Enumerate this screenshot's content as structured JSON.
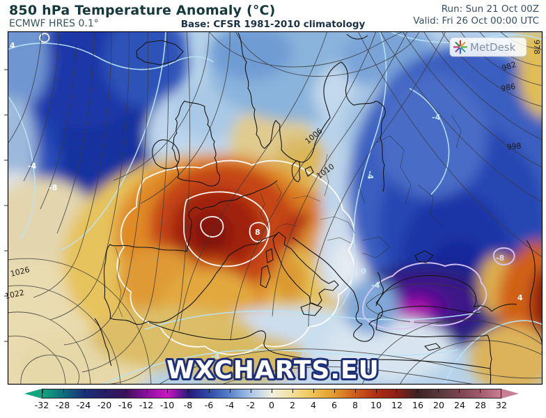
{
  "header": {
    "title": "850 hPa Temperature Anomaly (°C)",
    "model": "ECMWF HRES 0.1°",
    "base": "Base: CFSR 1981-2010 climatology",
    "run": "Run: Sun 21 Oct 00Z",
    "valid": "Valid: Fri 26 Oct 00:00 UTC"
  },
  "logo": {
    "text": "MetDesk"
  },
  "watermark": "WXCHARTS.EU",
  "map": {
    "pressure_labels": [
      "978",
      "982",
      "986",
      "998",
      "1006",
      "1010",
      "1022",
      "1026"
    ],
    "anomaly_labels": [
      "4",
      "-4",
      "-8",
      "8",
      "-4",
      "-4",
      "0",
      "-4",
      "-4",
      "-8",
      "-8",
      "4"
    ]
  },
  "colorbar": {
    "ticks": [
      "-32",
      "-28",
      "-24",
      "-20",
      "-16",
      "-12",
      "-10",
      "-8",
      "-6",
      "-4",
      "-2",
      "0",
      "2",
      "4",
      "6",
      "8",
      "10",
      "12",
      "16",
      "20",
      "24",
      "28",
      "32"
    ],
    "colors": [
      "#12a57f",
      "#0e6e7e",
      "#1c2f7a",
      "#241f66",
      "#3c1158",
      "#8a119e",
      "#cc16c4",
      "#27197a",
      "#2f4ba8",
      "#5b82cc",
      "#a9c6e8",
      "#f2efe1",
      "#f3e09a",
      "#eec251",
      "#e29a2e",
      "#cf5c1c",
      "#b02f14",
      "#8c1f14",
      "#3c2326",
      "#55383a",
      "#7a4350",
      "#a05a6a",
      "#c87e95"
    ]
  }
}
